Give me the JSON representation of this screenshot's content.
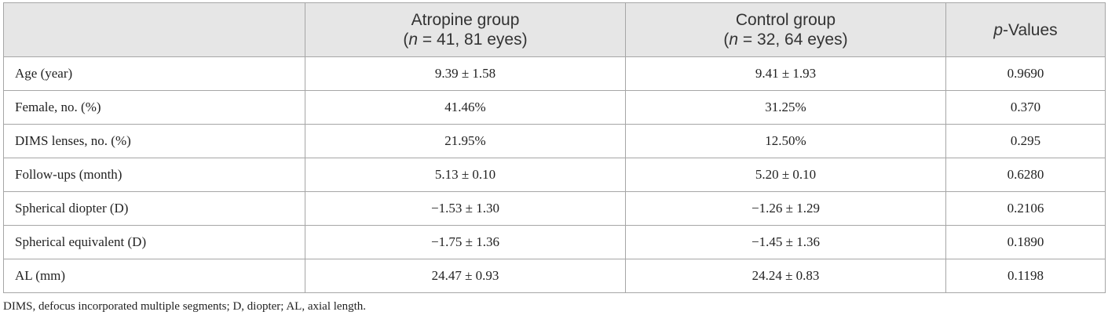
{
  "header": {
    "col0": "",
    "col1_title": "Atropine group",
    "col1_n_var": "n",
    "col1_n_rest": " = 41, 81 eyes)",
    "col2_title": "Control group",
    "col2_n_var": "n",
    "col2_n_rest": " = 32, 64 eyes)",
    "col3_var": "p",
    "col3_rest": "-Values"
  },
  "rows": [
    {
      "label": "Age (year)",
      "atropine": "9.39 ± 1.58",
      "control": "9.41 ± 1.93",
      "p": "0.9690"
    },
    {
      "label": "Female, no. (%)",
      "atropine": "41.46%",
      "control": "31.25%",
      "p": "0.370"
    },
    {
      "label": "DIMS lenses, no. (%)",
      "atropine": "21.95%",
      "control": "12.50%",
      "p": "0.295"
    },
    {
      "label": "Follow-ups (month)",
      "atropine": "5.13 ± 0.10",
      "control": "5.20 ± 0.10",
      "p": "0.6280"
    },
    {
      "label": "Spherical diopter (D)",
      "atropine": "−1.53 ± 1.30",
      "control": "−1.26 ± 1.29",
      "p": "0.2106"
    },
    {
      "label": "Spherical equivalent (D)",
      "atropine": "−1.75 ± 1.36",
      "control": "−1.45 ± 1.36",
      "p": "0.1890"
    },
    {
      "label": "AL (mm)",
      "atropine": "24.47 ± 0.93",
      "control": "24.24 ± 0.83",
      "p": "0.1198"
    }
  ],
  "footnote": "DIMS, defocus incorporated multiple segments; D, diopter; AL, axial length."
}
